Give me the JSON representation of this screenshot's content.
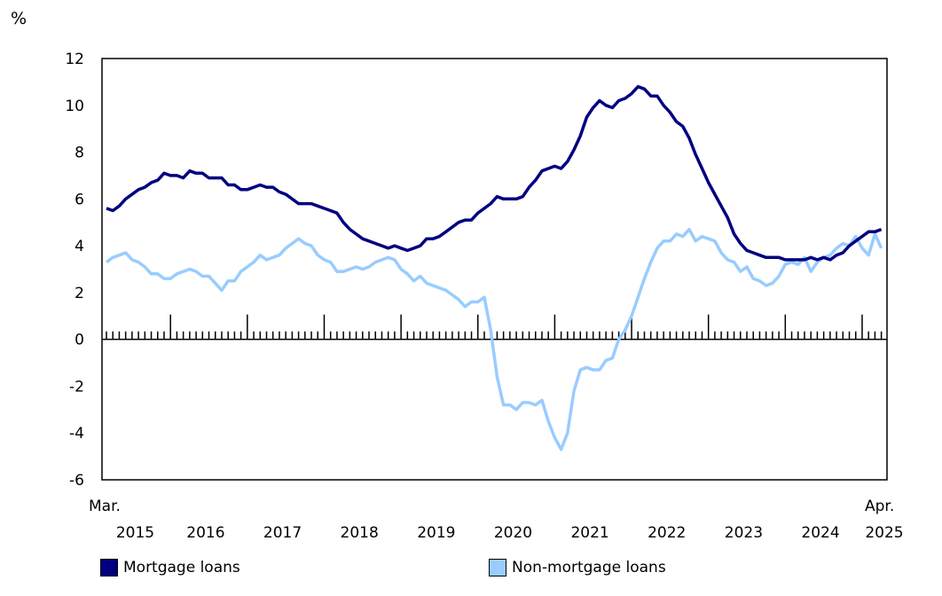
{
  "chart_data": {
    "type": "line",
    "ylabel": "%",
    "ylim": [
      -6,
      12
    ],
    "yticks": [
      -6,
      -4,
      -2,
      0,
      2,
      4,
      6,
      8,
      10,
      12
    ],
    "x_start": "Mar. 2015",
    "x_end": "Apr. 2025",
    "x_first_label": "Mar.",
    "x_last_label": "Apr.",
    "year_labels": [
      "2015",
      "2016",
      "2017",
      "2018",
      "2019",
      "2020",
      "2021",
      "2022",
      "2023",
      "2024",
      "2025"
    ],
    "frequency": "monthly",
    "grid": false,
    "legend_position": "bottom",
    "series": [
      {
        "name": "Mortgage loans",
        "color": "#000080",
        "values": [
          5.6,
          5.5,
          5.7,
          6.0,
          6.2,
          6.4,
          6.5,
          6.7,
          6.8,
          7.1,
          7.0,
          7.0,
          6.9,
          7.2,
          7.1,
          7.1,
          6.9,
          6.9,
          6.9,
          6.6,
          6.6,
          6.4,
          6.4,
          6.5,
          6.6,
          6.5,
          6.5,
          6.3,
          6.2,
          6.0,
          5.8,
          5.8,
          5.8,
          5.7,
          5.6,
          5.5,
          5.4,
          5.0,
          4.7,
          4.5,
          4.3,
          4.2,
          4.1,
          4.0,
          3.9,
          4.0,
          3.9,
          3.8,
          3.9,
          4.0,
          4.3,
          4.3,
          4.4,
          4.6,
          4.8,
          5.0,
          5.1,
          5.1,
          5.4,
          5.6,
          5.8,
          6.1,
          6.0,
          6.0,
          6.0,
          6.1,
          6.5,
          6.8,
          7.2,
          7.3,
          7.4,
          7.3,
          7.6,
          8.1,
          8.7,
          9.5,
          9.9,
          10.2,
          10.0,
          9.9,
          10.2,
          10.3,
          10.5,
          10.8,
          10.7,
          10.4,
          10.4,
          10.0,
          9.7,
          9.3,
          9.1,
          8.6,
          7.9,
          7.3,
          6.7,
          6.2,
          5.7,
          5.2,
          4.5,
          4.1,
          3.8,
          3.7,
          3.6,
          3.5,
          3.5,
          3.5,
          3.4,
          3.4,
          3.4,
          3.4,
          3.5,
          3.4,
          3.5,
          3.4,
          3.6,
          3.7,
          4.0,
          4.2,
          4.4,
          4.6,
          4.6,
          4.7
        ]
      },
      {
        "name": "Non-mortgage loans",
        "color": "#99ccff",
        "values": [
          3.3,
          3.5,
          3.6,
          3.7,
          3.4,
          3.3,
          3.1,
          2.8,
          2.8,
          2.6,
          2.6,
          2.8,
          2.9,
          3.0,
          2.9,
          2.7,
          2.7,
          2.4,
          2.1,
          2.5,
          2.5,
          2.9,
          3.1,
          3.3,
          3.6,
          3.4,
          3.5,
          3.6,
          3.9,
          4.1,
          4.3,
          4.1,
          4.0,
          3.6,
          3.4,
          3.3,
          2.9,
          2.9,
          3.0,
          3.1,
          3.0,
          3.1,
          3.3,
          3.4,
          3.5,
          3.4,
          3.0,
          2.8,
          2.5,
          2.7,
          2.4,
          2.3,
          2.2,
          2.1,
          1.9,
          1.7,
          1.4,
          1.6,
          1.6,
          1.8,
          0.4,
          -1.6,
          -2.8,
          -2.8,
          -3.0,
          -2.7,
          -2.7,
          -2.8,
          -2.6,
          -3.5,
          -4.2,
          -4.7,
          -4.0,
          -2.2,
          -1.3,
          -1.2,
          -1.3,
          -1.3,
          -0.9,
          -0.8,
          0.0,
          0.4,
          1.0,
          1.8,
          2.6,
          3.3,
          3.9,
          4.2,
          4.2,
          4.5,
          4.4,
          4.7,
          4.2,
          4.4,
          4.3,
          4.2,
          3.7,
          3.4,
          3.3,
          2.9,
          3.1,
          2.6,
          2.5,
          2.3,
          2.4,
          2.7,
          3.2,
          3.3,
          3.2,
          3.5,
          2.9,
          3.3,
          3.5,
          3.6,
          3.9,
          4.1,
          4.0,
          4.4,
          3.9,
          3.6,
          4.5,
          3.9
        ]
      }
    ]
  }
}
